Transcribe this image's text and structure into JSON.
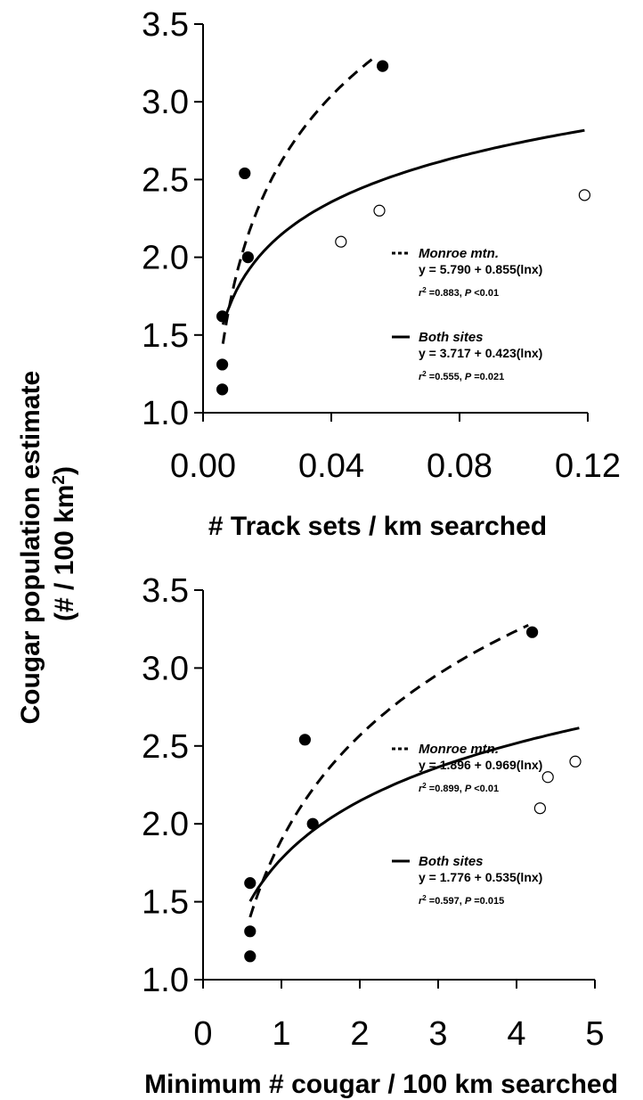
{
  "y_axis_label_line1": "Cougar population estimate",
  "y_axis_label_line2_prefix": "(# / 100 km",
  "y_axis_label_line2_sup": "2",
  "y_axis_label_line2_suffix": ")",
  "chart_data": [
    {
      "type": "scatter",
      "xlabel": "# Track sets / km searched",
      "ylabel": "Cougar population estimate (# / 100 km2)",
      "xlim": [
        0,
        0.12
      ],
      "ylim": [
        1.0,
        3.5
      ],
      "x_ticks": [
        "0.00",
        "0.04",
        "0.08",
        "0.12"
      ],
      "y_ticks": [
        "1.0",
        "1.5",
        "2.0",
        "2.5",
        "3.0",
        "3.5"
      ],
      "series": [
        {
          "marker": "filled-circle",
          "points": [
            [
              0.006,
              1.15
            ],
            [
              0.006,
              1.31
            ],
            [
              0.006,
              1.62
            ],
            [
              0.013,
              2.54
            ],
            [
              0.014,
              2.0
            ],
            [
              0.056,
              3.23
            ]
          ]
        },
        {
          "marker": "open-circle",
          "points": [
            [
              0.043,
              2.1
            ],
            [
              0.055,
              2.3
            ],
            [
              0.119,
              2.4
            ]
          ]
        }
      ],
      "fits": [
        {
          "style": "dashed",
          "a": 5.79,
          "b": 0.855,
          "x_range": [
            0.0062,
            0.054
          ]
        },
        {
          "style": "solid",
          "a": 3.717,
          "b": 0.423,
          "x_range": [
            0.0062,
            0.119
          ]
        }
      ],
      "legend": [
        {
          "style": "dashed",
          "title": "Monroe mtn.",
          "equation": "y = 5.790 + 0.855(lnx)",
          "r2_prefix": "r",
          "r2_sup": "2",
          "r2_value": " =0.883, ",
          "p_label": "P",
          "p_value": " <0.01"
        },
        {
          "style": "solid",
          "title": "Both sites",
          "equation": "y = 3.717 + 0.423(lnx)",
          "r2_prefix": "r",
          "r2_sup": "2",
          "r2_value": " =0.555, ",
          "p_label": "P",
          "p_value": " =0.021"
        }
      ]
    },
    {
      "type": "scatter",
      "xlabel": "Minimum # cougar / 100 km searched",
      "ylabel": "Cougar population estimate (# / 100 km2)",
      "xlim": [
        0,
        5
      ],
      "ylim": [
        1.0,
        3.5
      ],
      "x_ticks": [
        "0",
        "1",
        "2",
        "3",
        "4",
        "5"
      ],
      "y_ticks": [
        "1.0",
        "1.5",
        "2.0",
        "2.5",
        "3.0",
        "3.5"
      ],
      "series": [
        {
          "marker": "filled-circle",
          "points": [
            [
              0.6,
              1.15
            ],
            [
              0.6,
              1.31
            ],
            [
              0.6,
              1.62
            ],
            [
              1.3,
              2.54
            ],
            [
              1.4,
              2.0
            ],
            [
              4.2,
              3.23
            ]
          ]
        },
        {
          "marker": "open-circle",
          "points": [
            [
              4.3,
              2.1
            ],
            [
              4.4,
              2.3
            ],
            [
              4.75,
              2.4
            ]
          ]
        }
      ],
      "fits": [
        {
          "style": "dashed",
          "a": 1.896,
          "b": 0.969,
          "x_range": [
            0.6,
            4.15
          ]
        },
        {
          "style": "solid",
          "a": 1.776,
          "b": 0.535,
          "x_range": [
            0.6,
            4.8
          ]
        }
      ],
      "legend": [
        {
          "style": "dashed",
          "title": "Monroe mtn.",
          "equation": "y = 1.896 + 0.969(lnx)",
          "r2_prefix": "r",
          "r2_sup": "2",
          "r2_value": " =0.899, ",
          "p_label": "P",
          "p_value": " <0.01"
        },
        {
          "style": "solid",
          "title": "Both sites",
          "equation": "y = 1.776 + 0.535(lnx)",
          "r2_prefix": "r",
          "r2_sup": "2",
          "r2_value": " =0.597, ",
          "p_label": "P",
          "p_value": " =0.015"
        }
      ]
    }
  ]
}
